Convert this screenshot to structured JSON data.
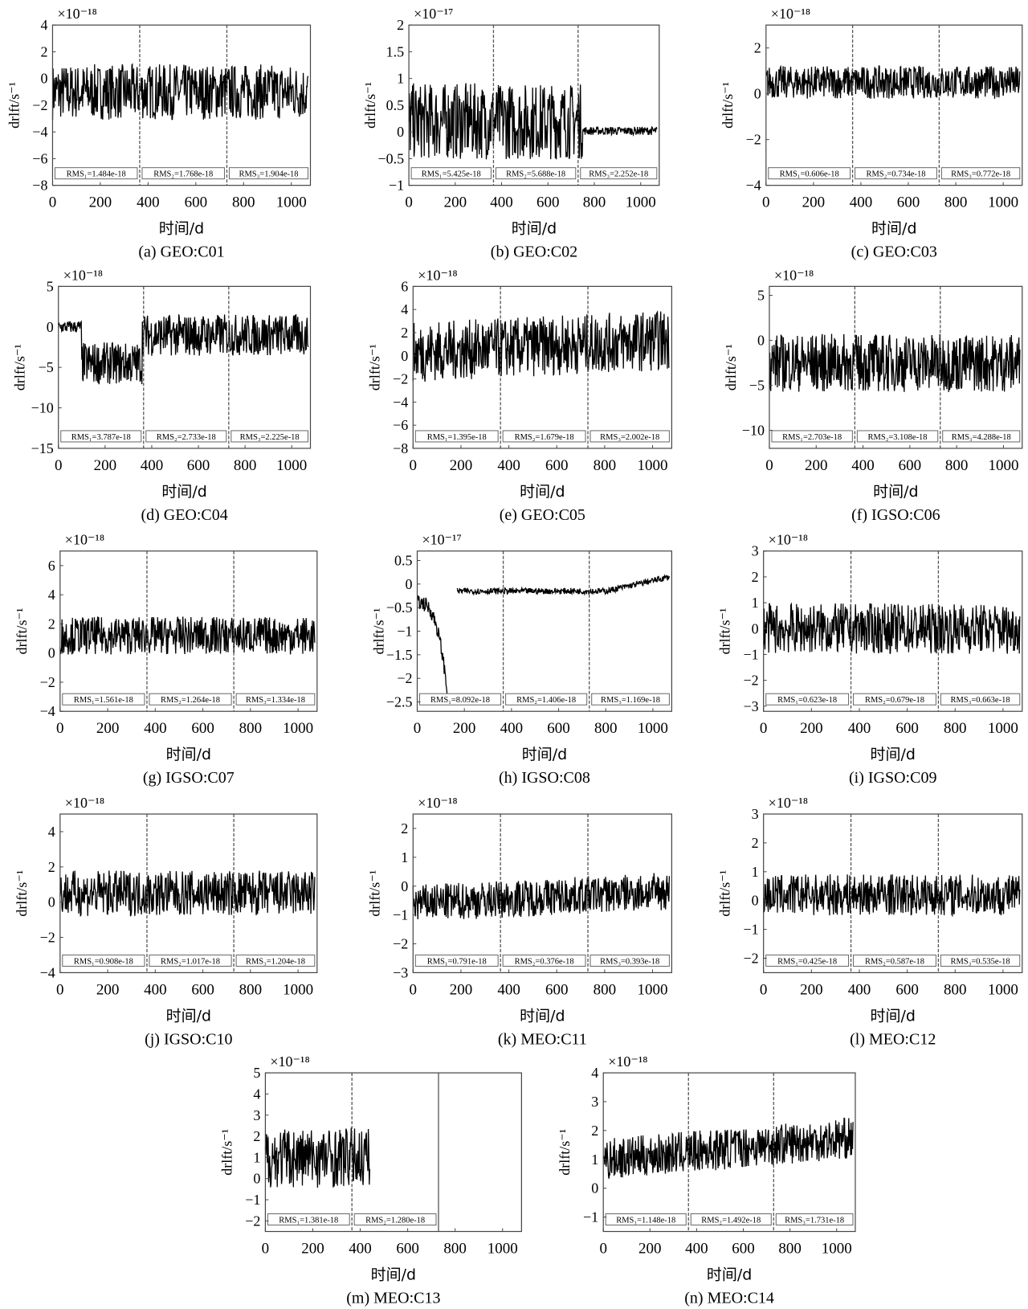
{
  "common": {
    "ylabel": "drlft/s⁻¹",
    "xlabel": "时间/d",
    "xticks": [
      0,
      200,
      400,
      600,
      800,
      1000
    ],
    "xlim": [
      0,
      1080
    ],
    "dividers": [
      365,
      730
    ],
    "line_color": "#000000",
    "divider_color": "#555555"
  },
  "chart_data": [
    {
      "type": "line",
      "caption": "(a) GEO:C01",
      "exponent": "×10⁻¹⁸",
      "ylim": [
        -8,
        4
      ],
      "yticks": [
        -8,
        -6,
        -4,
        -2,
        0,
        2,
        4
      ],
      "rms": [
        "RMS₁=1.484e-18",
        "RMS₂=1.768e-18",
        "RMS₃=1.904e-18"
      ]
    },
    {
      "type": "line",
      "caption": "(b) GEO:C02",
      "exponent": "×10⁻¹⁷",
      "ylim": [
        -1,
        2
      ],
      "yticks": [
        -1,
        -0.5,
        0,
        0.5,
        1,
        1.5,
        2
      ],
      "rms": [
        "RMS₁=5.425e-18",
        "RMS₂=5.688e-18",
        "RMS₃=2.252e-18"
      ]
    },
    {
      "type": "line",
      "caption": "(c) GEO:C03",
      "exponent": "×10⁻¹⁸",
      "ylim": [
        -4,
        3
      ],
      "yticks": [
        -4,
        -2,
        0,
        2
      ],
      "rms": [
        "RMS₁=0.606e-18",
        "RMS₂=0.734e-18",
        "RMS₃=0.772e-18"
      ]
    },
    {
      "type": "line",
      "caption": "(d) GEO:C04",
      "exponent": "×10⁻¹⁸",
      "ylim": [
        -15,
        5
      ],
      "yticks": [
        -15,
        -10,
        -5,
        0,
        5
      ],
      "rms": [
        "RMS₁=3.787e-18",
        "RMS₂=2.733e-18",
        "RMS₃=2.225e-18"
      ]
    },
    {
      "type": "line",
      "caption": "(e) GEO:C05",
      "exponent": "×10⁻¹⁸",
      "ylim": [
        -8,
        6
      ],
      "yticks": [
        -8,
        -6,
        -4,
        -2,
        0,
        2,
        4,
        6
      ],
      "rms": [
        "RMS₁=1.395e-18",
        "RMS₂=1.679e-18",
        "RMS₃=2.002e-18"
      ]
    },
    {
      "type": "line",
      "caption": "(f) IGSO:C06",
      "exponent": "×10⁻¹⁸",
      "ylim": [
        -12,
        6
      ],
      "yticks": [
        -10,
        -5,
        0,
        5
      ],
      "rms": [
        "RMS₁=2.703e-18",
        "RMS₂=3.108e-18",
        "RMS₃=4.288e-18"
      ]
    },
    {
      "type": "line",
      "caption": "(g) IGSO:C07",
      "exponent": "×10⁻¹⁸",
      "ylim": [
        -4,
        7
      ],
      "yticks": [
        -4,
        -2,
        0,
        2,
        4,
        6
      ],
      "rms": [
        "RMS₁=1.561e-18",
        "RMS₂=1.264e-18",
        "RMS₃=1.334e-18"
      ]
    },
    {
      "type": "line",
      "caption": "(h) IGSO:C08",
      "exponent": "×10⁻¹⁷",
      "ylim": [
        -2.7,
        0.7
      ],
      "yticks": [
        -2.5,
        -2,
        -1.5,
        -1,
        -0.5,
        0,
        0.5
      ],
      "rms": [
        "RMS₁=8.092e-18",
        "RMS₂=1.406e-18",
        "RMS₃=1.169e-18"
      ]
    },
    {
      "type": "line",
      "caption": "(i) IGSO:C09",
      "exponent": "×10⁻¹⁸",
      "ylim": [
        -3.2,
        3
      ],
      "yticks": [
        -3,
        -2,
        -1,
        0,
        1,
        2,
        3
      ],
      "rms": [
        "RMS₁=0.623e-18",
        "RMS₂=0.679e-18",
        "RMS₃=0.663e-18"
      ]
    },
    {
      "type": "line",
      "caption": "(j) IGSO:C10",
      "exponent": "×10⁻¹⁸",
      "ylim": [
        -4,
        5
      ],
      "yticks": [
        -4,
        -2,
        0,
        2,
        4
      ],
      "rms": [
        "RMS₁=0.908e-18",
        "RMS₂=1.017e-18",
        "RMS₃=1.204e-18"
      ]
    },
    {
      "type": "line",
      "caption": "(k) MEO:C11",
      "exponent": "×10⁻¹⁸",
      "ylim": [
        -3,
        2.5
      ],
      "yticks": [
        -3,
        -2,
        -1,
        0,
        1,
        2
      ],
      "rms": [
        "RMS₁=0.791e-18",
        "RMS₂=0.376e-18",
        "RMS₃=0.393e-18"
      ]
    },
    {
      "type": "line",
      "caption": "(l) MEO:C12",
      "exponent": "×10⁻¹⁸",
      "ylim": [
        -2.5,
        3
      ],
      "yticks": [
        -2,
        -1,
        0,
        1,
        2,
        3
      ],
      "rms": [
        "RMS₁=0.425e-18",
        "RMS₂=0.587e-18",
        "RMS₃=0.535e-18"
      ]
    },
    {
      "type": "line",
      "caption": "(m) MEO:C13",
      "exponent": "×10⁻¹⁸",
      "ylim": [
        -2.5,
        5
      ],
      "yticks": [
        -2,
        -1,
        0,
        1,
        2,
        3,
        4,
        5
      ],
      "rms": [
        "RMS₁=1.381e-18",
        "RMS₂=1.280e-18"
      ]
    },
    {
      "type": "line",
      "caption": "(n) MEO:C14",
      "exponent": "×10⁻¹⁸",
      "ylim": [
        -1.5,
        4
      ],
      "yticks": [
        -1,
        0,
        1,
        2,
        3,
        4
      ],
      "rms": [
        "RMS₁=1.148e-18",
        "RMS₂=1.492e-18",
        "RMS₃=1.731e-18"
      ]
    }
  ]
}
